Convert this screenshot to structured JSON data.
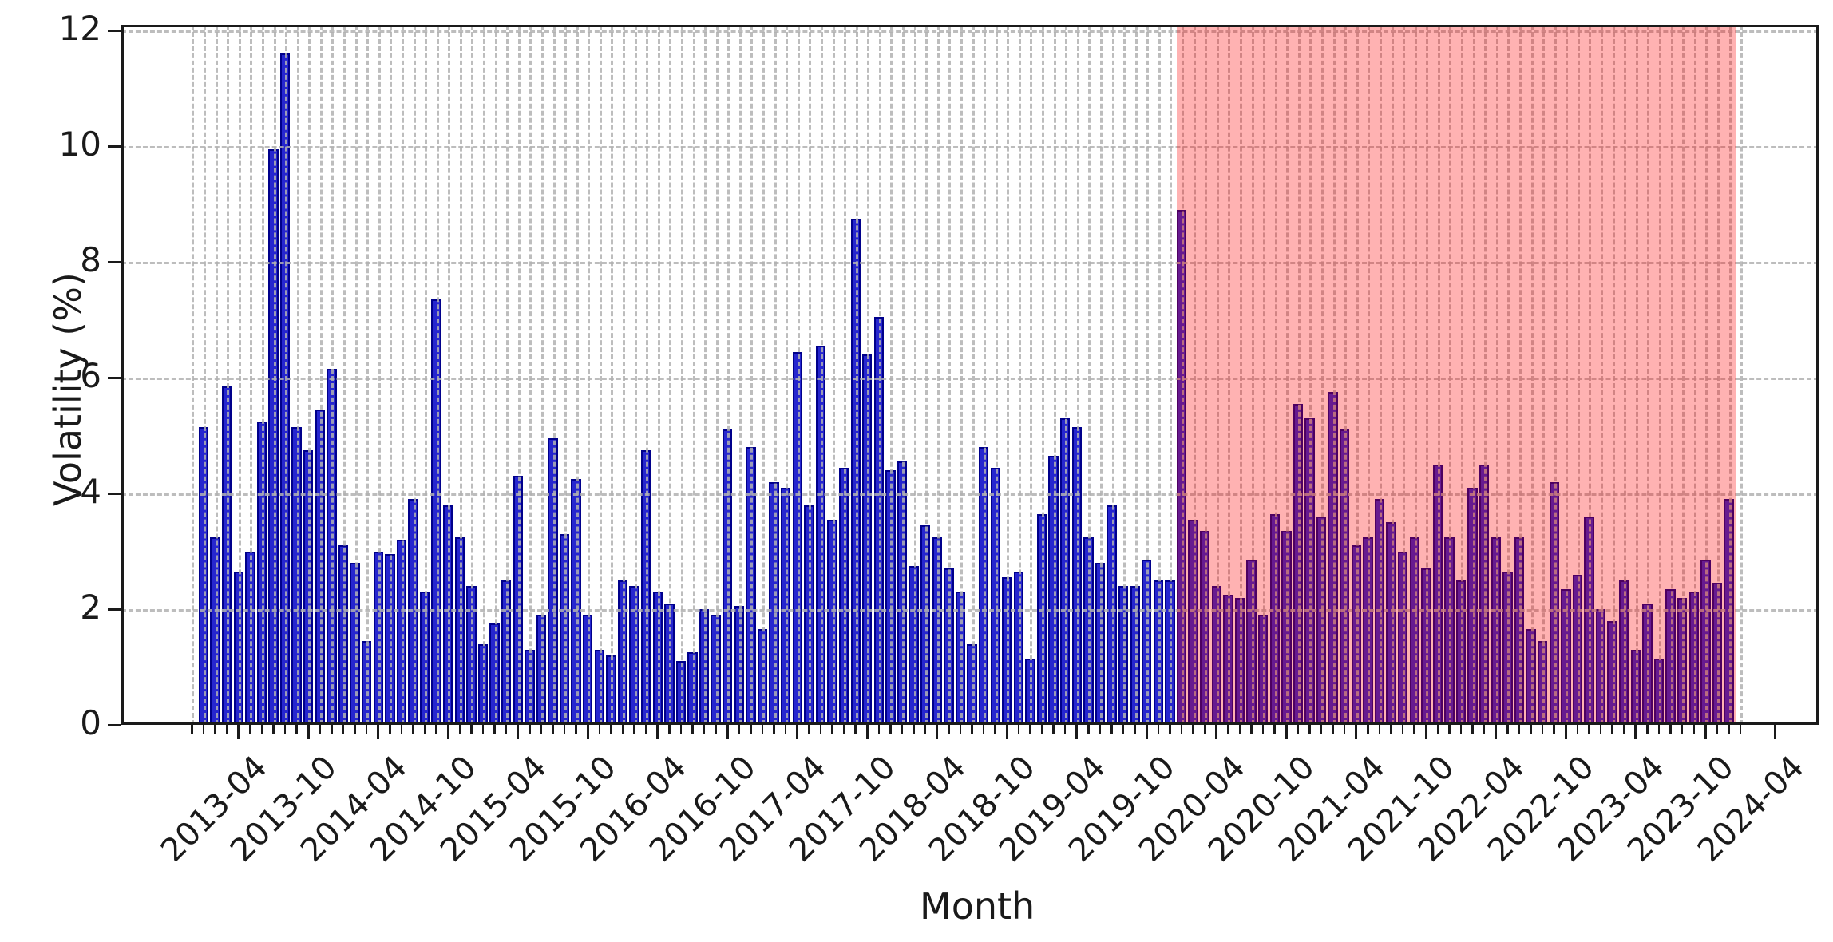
{
  "figure": {
    "title": "",
    "xlabel": "Month",
    "ylabel": "Volatility (%)",
    "background": "#ffffff"
  },
  "chart_data": {
    "type": "bar",
    "title": "",
    "xlabel": "Month",
    "ylabel": "Volatility (%)",
    "ylim": [
      0,
      12.1
    ],
    "yticks": [
      0,
      2,
      4,
      6,
      8,
      10,
      12
    ],
    "grid": true,
    "legend_position": "none",
    "bar_color": "#2626cf",
    "bar_edge_color": "#00008b",
    "highlight_region": {
      "from": "2020-01",
      "to": "2024-01",
      "color": "#ff0000",
      "alpha": 0.3
    },
    "xtick_labels": [
      "2013-04",
      "2013-10",
      "2014-04",
      "2014-10",
      "2015-04",
      "2015-10",
      "2016-04",
      "2016-10",
      "2017-04",
      "2017-10",
      "2018-04",
      "2018-10",
      "2019-04",
      "2019-10",
      "2020-04",
      "2020-10",
      "2021-04",
      "2021-10",
      "2022-04",
      "2022-10",
      "2023-04",
      "2023-10",
      "2024-04"
    ],
    "categories": [
      "2013-01",
      "2013-02",
      "2013-03",
      "2013-04",
      "2013-05",
      "2013-06",
      "2013-07",
      "2013-08",
      "2013-09",
      "2013-10",
      "2013-11",
      "2013-12",
      "2014-01",
      "2014-02",
      "2014-03",
      "2014-04",
      "2014-05",
      "2014-06",
      "2014-07",
      "2014-08",
      "2014-09",
      "2014-10",
      "2014-11",
      "2014-12",
      "2015-01",
      "2015-02",
      "2015-03",
      "2015-04",
      "2015-05",
      "2015-06",
      "2015-07",
      "2015-08",
      "2015-09",
      "2015-10",
      "2015-11",
      "2015-12",
      "2016-01",
      "2016-02",
      "2016-03",
      "2016-04",
      "2016-05",
      "2016-06",
      "2016-07",
      "2016-08",
      "2016-09",
      "2016-10",
      "2016-11",
      "2016-12",
      "2017-01",
      "2017-02",
      "2017-03",
      "2017-04",
      "2017-05",
      "2017-06",
      "2017-07",
      "2017-08",
      "2017-09",
      "2017-10",
      "2017-11",
      "2017-12",
      "2018-01",
      "2018-02",
      "2018-03",
      "2018-04",
      "2018-05",
      "2018-06",
      "2018-07",
      "2018-08",
      "2018-09",
      "2018-10",
      "2018-11",
      "2018-12",
      "2019-01",
      "2019-02",
      "2019-03",
      "2019-04",
      "2019-05",
      "2019-06",
      "2019-07",
      "2019-08",
      "2019-09",
      "2019-10",
      "2019-11",
      "2019-12",
      "2020-01",
      "2020-02",
      "2020-03",
      "2020-04",
      "2020-05",
      "2020-06",
      "2020-07",
      "2020-08",
      "2020-09",
      "2020-10",
      "2020-11",
      "2020-12",
      "2021-01",
      "2021-02",
      "2021-03",
      "2021-04",
      "2021-05",
      "2021-06",
      "2021-07",
      "2021-08",
      "2021-09",
      "2021-10",
      "2021-11",
      "2021-12",
      "2022-01",
      "2022-02",
      "2022-03",
      "2022-04",
      "2022-05",
      "2022-06",
      "2022-07",
      "2022-08",
      "2022-09",
      "2022-10",
      "2022-11",
      "2022-12",
      "2023-01",
      "2023-02",
      "2023-03",
      "2023-04",
      "2023-05",
      "2023-06",
      "2023-07",
      "2023-08",
      "2023-09",
      "2023-10",
      "2023-11",
      "2023-12"
    ],
    "values": [
      5.15,
      3.25,
      5.85,
      2.65,
      3.0,
      5.25,
      9.95,
      11.6,
      5.15,
      4.75,
      5.45,
      6.15,
      3.1,
      2.8,
      1.45,
      3.0,
      2.95,
      3.2,
      3.9,
      2.3,
      7.35,
      3.8,
      3.25,
      2.4,
      1.4,
      1.75,
      2.5,
      4.3,
      1.3,
      1.9,
      4.95,
      3.3,
      4.25,
      1.9,
      1.3,
      1.2,
      2.5,
      2.4,
      4.75,
      2.3,
      2.1,
      1.1,
      1.25,
      2.0,
      1.9,
      5.1,
      2.05,
      4.8,
      1.65,
      4.2,
      4.1,
      6.45,
      3.8,
      6.55,
      3.55,
      4.45,
      8.75,
      6.4,
      7.05,
      4.4,
      4.55,
      2.75,
      3.45,
      3.25,
      2.7,
      2.3,
      1.4,
      4.8,
      4.45,
      2.55,
      2.65,
      1.15,
      3.65,
      4.65,
      5.3,
      5.15,
      3.25,
      2.8,
      3.8,
      2.4,
      2.4,
      2.85,
      2.5,
      2.5,
      8.9,
      3.55,
      3.35,
      2.4,
      2.25,
      2.2,
      2.85,
      1.9,
      3.65,
      3.35,
      5.55,
      5.3,
      3.6,
      5.75,
      5.1,
      3.1,
      3.25,
      3.9,
      3.5,
      3.0,
      3.25,
      2.7,
      4.5,
      3.25,
      2.5,
      4.1,
      4.5,
      3.25,
      2.65,
      3.25,
      1.65,
      1.45,
      4.2,
      2.35,
      2.6,
      3.6,
      2.0,
      1.8,
      2.5,
      1.3,
      2.1,
      1.15,
      2.35,
      2.2,
      2.3,
      2.85,
      2.45,
      3.9
    ]
  }
}
